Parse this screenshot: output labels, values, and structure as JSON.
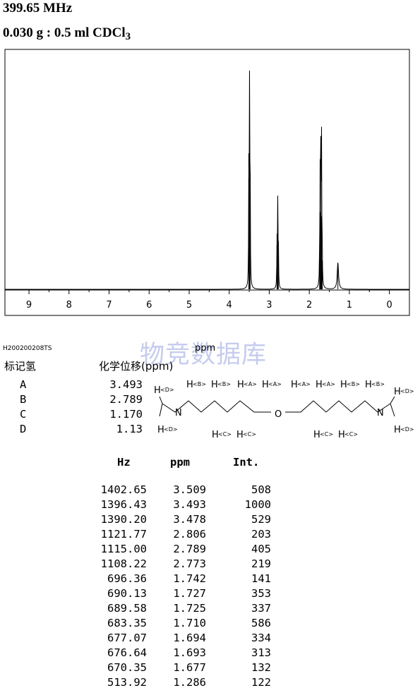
{
  "header": {
    "frequency": "399.65 MHz",
    "sample_main": "0.030 g : 0.5 ml CDCl",
    "sample_sub": "3"
  },
  "chart_data": {
    "type": "line",
    "xlabel": "ppm",
    "xlim": [
      9.6,
      -0.5
    ],
    "ylim": [
      0,
      1000
    ],
    "x_ticks": [
      "9",
      "8",
      "7",
      "6",
      "5",
      "4",
      "3",
      "2",
      "1",
      "0"
    ],
    "peaks": [
      {
        "ppm": 3.509,
        "int": 508
      },
      {
        "ppm": 3.493,
        "int": 1000
      },
      {
        "ppm": 3.478,
        "int": 529
      },
      {
        "ppm": 2.806,
        "int": 203
      },
      {
        "ppm": 2.789,
        "int": 405
      },
      {
        "ppm": 2.773,
        "int": 219
      },
      {
        "ppm": 1.742,
        "int": 141
      },
      {
        "ppm": 1.727,
        "int": 353
      },
      {
        "ppm": 1.725,
        "int": 337
      },
      {
        "ppm": 1.71,
        "int": 586
      },
      {
        "ppm": 1.694,
        "int": 334
      },
      {
        "ppm": 1.693,
        "int": 313
      },
      {
        "ppm": 1.677,
        "int": 132
      },
      {
        "ppm": 1.286,
        "int": 122
      }
    ]
  },
  "spectrum_code": "H200200208TS",
  "watermark": "物竞数据库",
  "assignment": {
    "col1_header": "标记氢",
    "col2_header": "化学位移(ppm)",
    "rows": [
      {
        "label": "A",
        "shift": "3.493"
      },
      {
        "label": "B",
        "shift": "2.789"
      },
      {
        "label": "C",
        "shift": "1.170"
      },
      {
        "label": "D",
        "shift": "1.13"
      }
    ]
  },
  "molecule": {
    "H": "H",
    "N": "N",
    "O": "O",
    "tagA": "<A>",
    "tagB": "<B>",
    "tagC": "<C>",
    "tagD": "<D>"
  },
  "peak_table": {
    "headers": [
      "Hz",
      "ppm",
      "Int."
    ],
    "rows": [
      [
        "1402.65",
        "3.509",
        "508"
      ],
      [
        "1396.43",
        "3.493",
        "1000"
      ],
      [
        "1390.20",
        "3.478",
        "529"
      ],
      [
        "1121.77",
        "2.806",
        "203"
      ],
      [
        "1115.00",
        "2.789",
        "405"
      ],
      [
        "1108.22",
        "2.773",
        "219"
      ],
      [
        "696.36",
        "1.742",
        "141"
      ],
      [
        "690.13",
        "1.727",
        "353"
      ],
      [
        "689.58",
        "1.725",
        "337"
      ],
      [
        "683.35",
        "1.710",
        "586"
      ],
      [
        "677.07",
        "1.694",
        "334"
      ],
      [
        "676.64",
        "1.693",
        "313"
      ],
      [
        "670.35",
        "1.677",
        "132"
      ],
      [
        "513.92",
        "1.286",
        "122"
      ]
    ]
  }
}
